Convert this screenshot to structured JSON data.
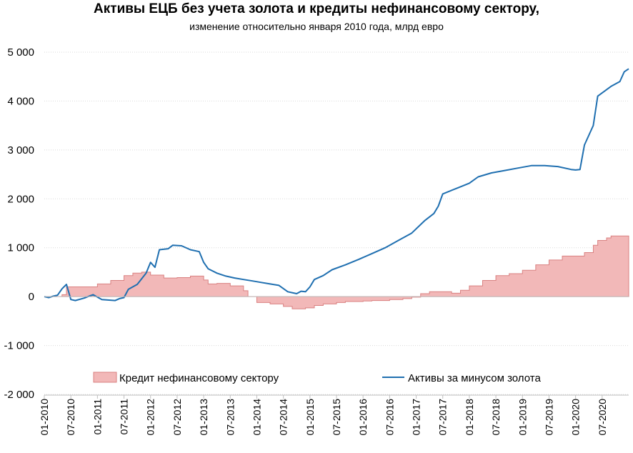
{
  "chart_data": {
    "type": "area",
    "title": "Активы ЕЦБ без учета золота и кредиты нефинансовому сектору,",
    "subtitle": "изменение относительно января 2010 года, млрд евро",
    "xlabel": "",
    "ylabel": "",
    "ylim": [
      -2000,
      5000
    ],
    "y_ticks": [
      5000,
      4000,
      3000,
      2000,
      1000,
      0,
      -1000,
      -2000
    ],
    "y_tick_labels": [
      "5 000",
      "4 000",
      "3 000",
      "2 000",
      "1 000",
      "0",
      "-1 000",
      "-2 000"
    ],
    "x_tick_labels": [
      "01-2010",
      "07-2010",
      "01-2011",
      "07-2011",
      "01-2012",
      "07-2012",
      "01-2013",
      "07-2013",
      "01-2014",
      "07-2014",
      "01-2015",
      "07-2015",
      "01-2016",
      "07-2016",
      "01-2017",
      "07-2017",
      "01-2018",
      "07-2018",
      "01-2019",
      "07-2019",
      "01-2020",
      "07-2020"
    ],
    "x_tick_dates": [
      "2010-01",
      "2010-07",
      "2011-01",
      "2011-07",
      "2012-01",
      "2012-07",
      "2013-01",
      "2013-07",
      "2014-01",
      "2014-07",
      "2015-01",
      "2015-07",
      "2016-01",
      "2016-07",
      "2017-01",
      "2017-07",
      "2018-01",
      "2018-07",
      "2019-01",
      "2019-07",
      "2020-01",
      "2020-07"
    ],
    "grid": true,
    "legend_position": "bottom",
    "series": [
      {
        "name": "Кредит нефинансовому сектору",
        "kind": "area",
        "color": "#f2b8b8",
        "edge_color": "#d98080",
        "points": [
          [
            "2010-01",
            0
          ],
          [
            "2010-05",
            40
          ],
          [
            "2010-06",
            200
          ],
          [
            "2010-10",
            200
          ],
          [
            "2011-01",
            260
          ],
          [
            "2011-04",
            330
          ],
          [
            "2011-07",
            430
          ],
          [
            "2011-09",
            480
          ],
          [
            "2011-11",
            500
          ],
          [
            "2012-01",
            440
          ],
          [
            "2012-04",
            380
          ],
          [
            "2012-07",
            390
          ],
          [
            "2012-10",
            420
          ],
          [
            "2013-01",
            340
          ],
          [
            "2013-02",
            260
          ],
          [
            "2013-04",
            270
          ],
          [
            "2013-07",
            220
          ],
          [
            "2013-10",
            120
          ],
          [
            "2013-11",
            0
          ],
          [
            "2014-01",
            -120
          ],
          [
            "2014-04",
            -150
          ],
          [
            "2014-07",
            -200
          ],
          [
            "2014-09",
            -250
          ],
          [
            "2014-12",
            -230
          ],
          [
            "2015-02",
            -180
          ],
          [
            "2015-04",
            -150
          ],
          [
            "2015-07",
            -120
          ],
          [
            "2015-09",
            -100
          ],
          [
            "2016-01",
            -90
          ],
          [
            "2016-03",
            -80
          ],
          [
            "2016-07",
            -60
          ],
          [
            "2016-10",
            -40
          ],
          [
            "2016-12",
            -10
          ],
          [
            "2017-02",
            60
          ],
          [
            "2017-04",
            100
          ],
          [
            "2017-08",
            100
          ],
          [
            "2017-09",
            70
          ],
          [
            "2017-11",
            130
          ],
          [
            "2018-01",
            220
          ],
          [
            "2018-04",
            330
          ],
          [
            "2018-07",
            430
          ],
          [
            "2018-10",
            470
          ],
          [
            "2019-01",
            540
          ],
          [
            "2019-04",
            650
          ],
          [
            "2019-07",
            750
          ],
          [
            "2019-10",
            830
          ],
          [
            "2020-01",
            830
          ],
          [
            "2020-03",
            900
          ],
          [
            "2020-05",
            1050
          ],
          [
            "2020-06",
            1150
          ],
          [
            "2020-08",
            1200
          ],
          [
            "2020-09",
            1240
          ],
          [
            "2021-01",
            1240
          ]
        ]
      },
      {
        "name": "Активы за минусом золота",
        "kind": "line",
        "color": "#1f6fb0",
        "points": [
          [
            "2010-01",
            0
          ],
          [
            "2010-02",
            -20
          ],
          [
            "2010-03",
            10
          ],
          [
            "2010-04",
            30
          ],
          [
            "2010-05",
            160
          ],
          [
            "2010-06",
            250
          ],
          [
            "2010-07",
            -60
          ],
          [
            "2010-08",
            -80
          ],
          [
            "2010-10",
            -30
          ],
          [
            "2010-12",
            40
          ],
          [
            "2011-02",
            -60
          ],
          [
            "2011-05",
            -80
          ],
          [
            "2011-06",
            -40
          ],
          [
            "2011-07",
            -20
          ],
          [
            "2011-08",
            150
          ],
          [
            "2011-10",
            250
          ],
          [
            "2011-12",
            480
          ],
          [
            "2012-01",
            700
          ],
          [
            "2012-02",
            600
          ],
          [
            "2012-03",
            960
          ],
          [
            "2012-05",
            980
          ],
          [
            "2012-06",
            1050
          ],
          [
            "2012-08",
            1040
          ],
          [
            "2012-10",
            960
          ],
          [
            "2012-12",
            920
          ],
          [
            "2013-01",
            700
          ],
          [
            "2013-02",
            570
          ],
          [
            "2013-04",
            480
          ],
          [
            "2013-06",
            420
          ],
          [
            "2013-08",
            380
          ],
          [
            "2013-10",
            350
          ],
          [
            "2013-12",
            320
          ],
          [
            "2014-02",
            290
          ],
          [
            "2014-04",
            260
          ],
          [
            "2014-06",
            230
          ],
          [
            "2014-08",
            100
          ],
          [
            "2014-10",
            60
          ],
          [
            "2014-11",
            110
          ],
          [
            "2014-12",
            100
          ],
          [
            "2015-01",
            200
          ],
          [
            "2015-02",
            350
          ],
          [
            "2015-04",
            430
          ],
          [
            "2015-06",
            550
          ],
          [
            "2015-09",
            650
          ],
          [
            "2015-12",
            760
          ],
          [
            "2016-03",
            880
          ],
          [
            "2016-06",
            1000
          ],
          [
            "2016-09",
            1150
          ],
          [
            "2016-12",
            1300
          ],
          [
            "2017-03",
            1560
          ],
          [
            "2017-05",
            1700
          ],
          [
            "2017-06",
            1850
          ],
          [
            "2017-07",
            2100
          ],
          [
            "2017-10",
            2210
          ],
          [
            "2018-01",
            2320
          ],
          [
            "2018-03",
            2450
          ],
          [
            "2018-06",
            2530
          ],
          [
            "2018-09",
            2580
          ],
          [
            "2018-12",
            2630
          ],
          [
            "2019-03",
            2680
          ],
          [
            "2019-06",
            2680
          ],
          [
            "2019-09",
            2660
          ],
          [
            "2019-12",
            2600
          ],
          [
            "2020-01",
            2590
          ],
          [
            "2020-02",
            2600
          ],
          [
            "2020-03",
            3100
          ],
          [
            "2020-05",
            3500
          ],
          [
            "2020-06",
            4100
          ],
          [
            "2020-09",
            4300
          ],
          [
            "2020-11",
            4400
          ],
          [
            "2020-12",
            4600
          ],
          [
            "2021-01",
            4660
          ]
        ]
      }
    ]
  }
}
